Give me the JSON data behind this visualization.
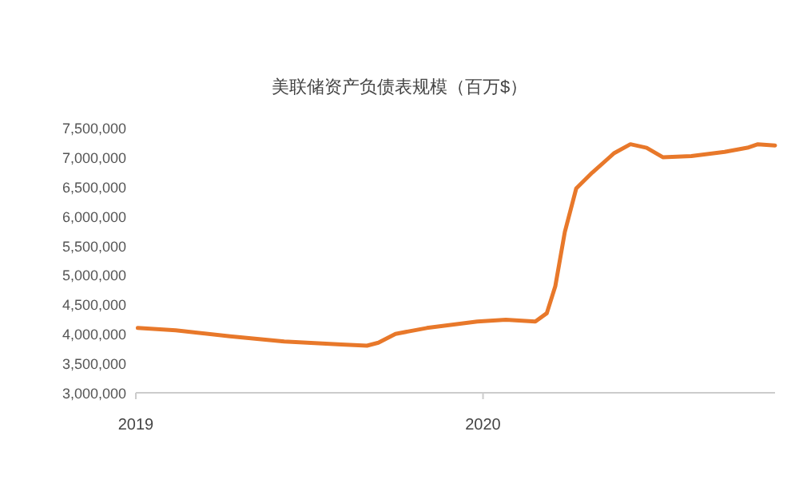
{
  "chart_data": {
    "type": "line",
    "title": "美联储资产负债表规模（百万$）",
    "x": [
      "2019-01-03",
      "2019-02-12",
      "2019-04-10",
      "2019-06-06",
      "2019-08-05",
      "2019-09-01",
      "2019-09-13",
      "2019-10-01",
      "2019-11-03",
      "2019-12-26",
      "2020-01-25",
      "2020-02-25",
      "2020-03-08",
      "2020-03-17",
      "2020-03-27",
      "2020-04-08",
      "2020-04-25",
      "2020-05-18",
      "2020-06-04",
      "2020-06-21",
      "2020-07-08",
      "2020-08-07",
      "2020-09-11",
      "2020-10-05",
      "2020-10-16",
      "2020-11-03"
    ],
    "series": [
      {
        "color": "#e8782a",
        "values": [
          4100000,
          4060000,
          3960000,
          3870000,
          3820000,
          3800000,
          3850000,
          4000000,
          4100000,
          4210000,
          4240000,
          4210000,
          4350000,
          4810000,
          5730000,
          6470000,
          6740000,
          7070000,
          7220000,
          7160000,
          7000000,
          7020000,
          7090000,
          7160000,
          7220000,
          7200000
        ]
      }
    ],
    "xlim": [
      "2019-01-01",
      "2020-11-03"
    ],
    "xticks": [
      {
        "value": "2019-01-01",
        "label": "2019"
      },
      {
        "value": "2020-01-01",
        "label": "2020"
      }
    ],
    "ylim": [
      3000000,
      7500000
    ],
    "yticks": [
      {
        "value": 3000000,
        "label": "3,000,000"
      },
      {
        "value": 3500000,
        "label": "3,500,000"
      },
      {
        "value": 4000000,
        "label": "4,000,000"
      },
      {
        "value": 4500000,
        "label": "4,500,000"
      },
      {
        "value": 5000000,
        "label": "5,000,000"
      },
      {
        "value": 5500000,
        "label": "5,500,000"
      },
      {
        "value": 6000000,
        "label": "6,000,000"
      },
      {
        "value": 6500000,
        "label": "6,500,000"
      },
      {
        "value": 7000000,
        "label": "7,000,000"
      },
      {
        "value": 7500000,
        "label": "7,500,000"
      }
    ],
    "grid": false,
    "marker": "none",
    "line_style": "solid"
  }
}
